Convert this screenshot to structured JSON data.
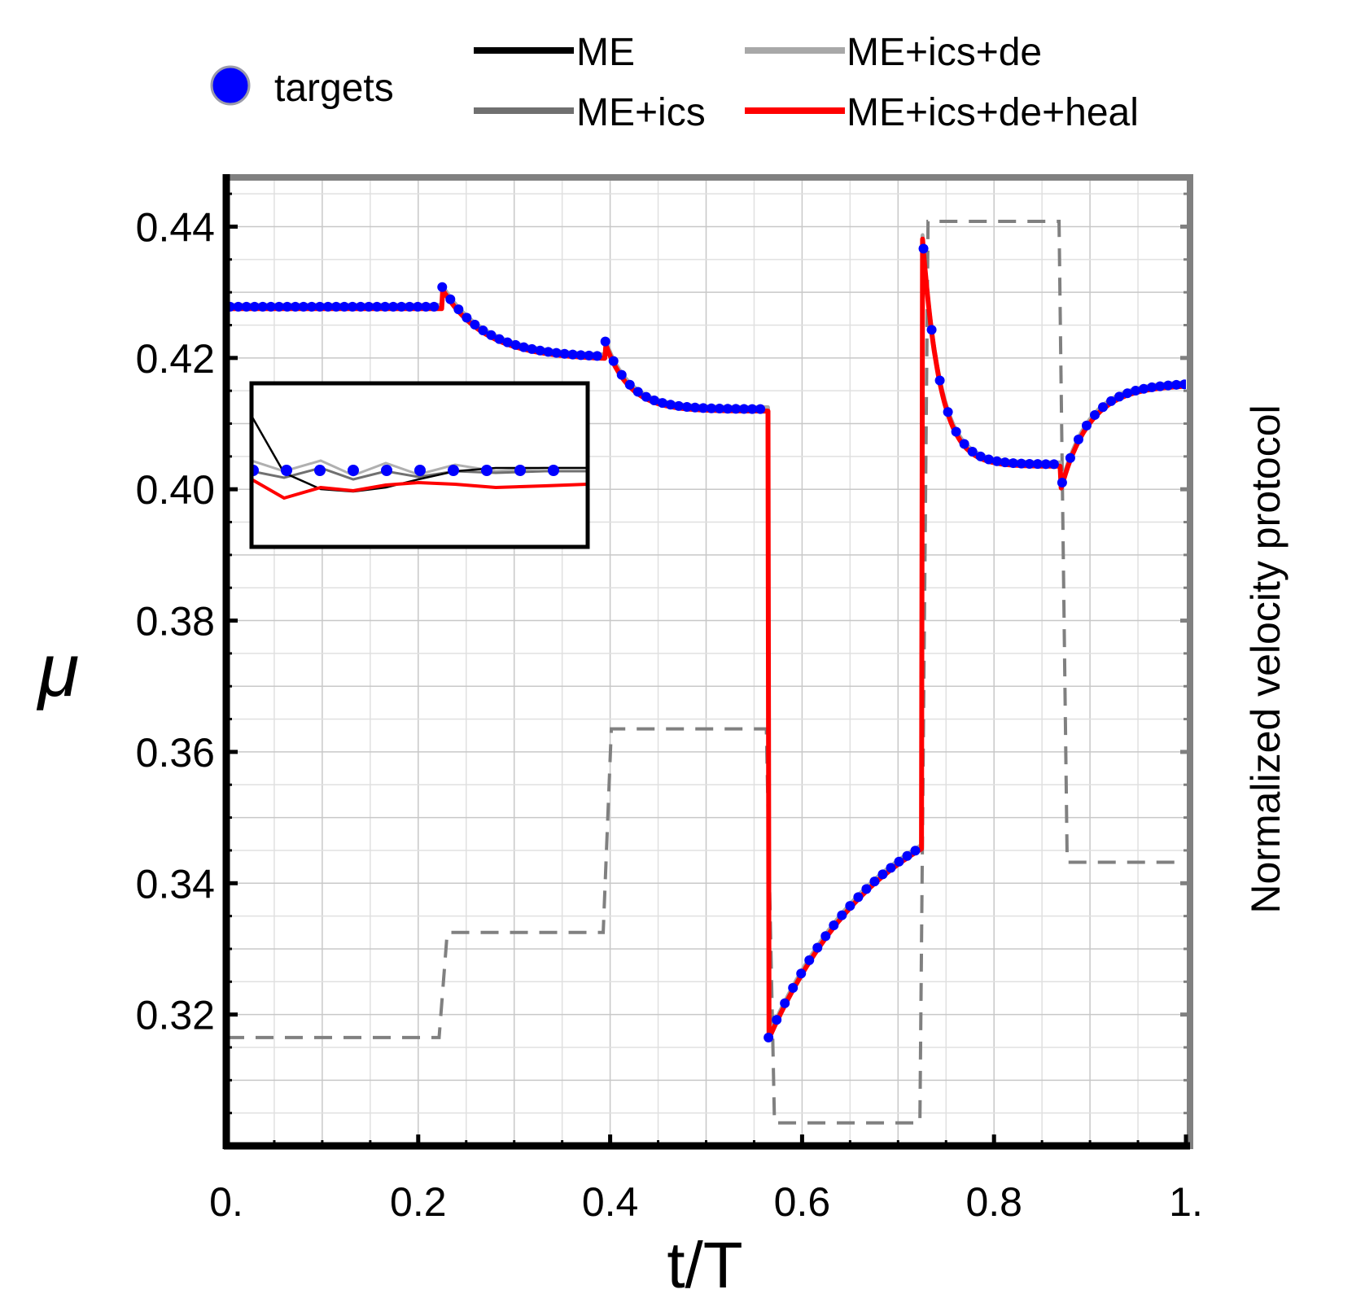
{
  "chart_data": {
    "type": "line",
    "title": "",
    "xlabel": "t/T",
    "ylabel": "μ",
    "y2label": "Normalized velocity protocol",
    "xlim": [
      0,
      1
    ],
    "ylim": [
      0.3,
      0.447
    ],
    "grid": true,
    "x_ticks": [
      0,
      0.2,
      0.4,
      0.6,
      0.8,
      1
    ],
    "x_tick_labels": [
      "0.",
      "0.2",
      "0.4",
      "0.6",
      "0.8",
      "1."
    ],
    "y_ticks": [
      0.32,
      0.34,
      0.36,
      0.38,
      0.4,
      0.42,
      0.44
    ],
    "y_tick_labels": [
      "0.32",
      "0.34",
      "0.36",
      "0.38",
      "0.40",
      "0.42",
      "0.44"
    ],
    "legend": {
      "placement": "top",
      "entries": [
        {
          "label": "targets",
          "kind": "marker",
          "color": "#0000ff"
        },
        {
          "label": "ME",
          "kind": "line",
          "color": "#000000"
        },
        {
          "label": "ME+ics",
          "kind": "line",
          "color": "#707070"
        },
        {
          "label": "ME+ics+de",
          "kind": "line",
          "color": "#a8a8a8"
        },
        {
          "label": "ME+ics+de+heal",
          "kind": "line",
          "color": "#ff0000"
        }
      ]
    },
    "segments": [
      {
        "start": 0.0,
        "end": 0.225,
        "mode": "flat",
        "v0": 0.4278
      },
      {
        "start": 0.225,
        "end": 0.395,
        "mode": "decay",
        "peak": 0.4308,
        "ss": 0.42,
        "tau": 0.045
      },
      {
        "start": 0.395,
        "end": 0.565,
        "mode": "decay",
        "peak": 0.4225,
        "ss": 0.4122,
        "tau": 0.025
      },
      {
        "start": 0.565,
        "end": 0.725,
        "mode": "rise",
        "v0": 0.3165,
        "ss": 0.356,
        "tau": 0.12
      },
      {
        "start": 0.725,
        "end": 0.87,
        "mode": "decay",
        "peak": 0.4395,
        "ss": 0.4038,
        "tau": 0.018
      },
      {
        "start": 0.87,
        "end": 1.0,
        "mode": "rise",
        "v0": 0.4005,
        "ss": 0.4162,
        "tau": 0.03
      }
    ],
    "series": [
      {
        "name": "ME",
        "color": "#000000",
        "width": 3.5,
        "offset": 0.0
      },
      {
        "name": "ME+ics",
        "color": "#707070",
        "width": 4.5,
        "offset": 0.0002
      },
      {
        "name": "ME+ics+de",
        "color": "#a8a8a8",
        "width": 4.5,
        "offset": 0.0003
      },
      {
        "name": "ME+ics+de+heal",
        "color": "#ff0000",
        "width": 6,
        "offset": -0.0003
      }
    ],
    "targets": {
      "name": "targets",
      "color": "#0000ff",
      "spacing": 0.0085
    },
    "velocity_protocol": {
      "name": "Normalized velocity protocol",
      "color": "#808080",
      "steps": [
        {
          "start": 0.0,
          "end": 0.226,
          "value": 0.3165
        },
        {
          "start": 0.226,
          "end": 0.397,
          "value": 0.3325
        },
        {
          "start": 0.397,
          "end": 0.567,
          "value": 0.3635
        },
        {
          "start": 0.567,
          "end": 0.727,
          "value": 0.3035
        },
        {
          "start": 0.727,
          "end": 0.872,
          "value": 0.4408
        },
        {
          "start": 0.872,
          "end": 1.0,
          "value": 0.3432
        }
      ]
    },
    "inset": {
      "description_less": true,
      "target_count": 10
    }
  }
}
